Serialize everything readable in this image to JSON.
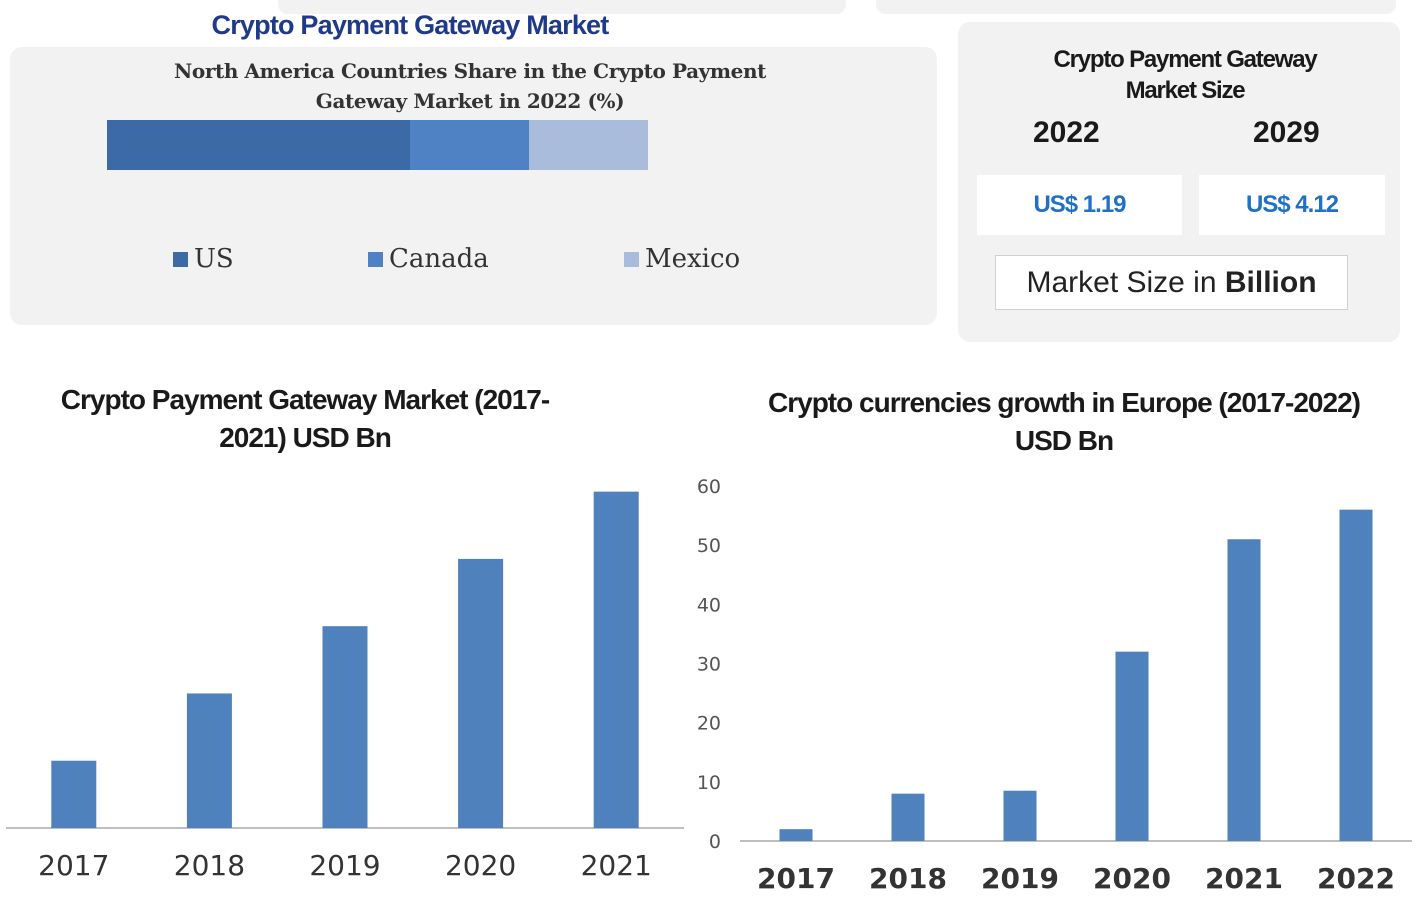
{
  "header": {
    "title": "Crypto Payment Gateway Market"
  },
  "north_america": {
    "title_line1": "North America Countries Share in the Crypto Payment",
    "title_line2": "Gateway Market in 2022 (%)",
    "legend": [
      {
        "label": "US",
        "color": "#3b6aa6"
      },
      {
        "label": "Canada",
        "color": "#4f82c4"
      },
      {
        "label": "Mexico",
        "color": "#a9bcdb"
      }
    ]
  },
  "market_size": {
    "title_line1": "Crypto Payment Gateway",
    "title_line2": "Market Size",
    "years": [
      {
        "year": "2022",
        "value": "US$ 1.19"
      },
      {
        "year": "2029",
        "value": "US$ 4.12"
      }
    ],
    "unit_prefix": "Market Size in ",
    "unit_bold": "Billion"
  },
  "chart_data": [
    {
      "type": "bar",
      "orientation": "horizontal-stacked",
      "title": "North America Countries Share in the Crypto Payment Gateway Market in 2022 (%)",
      "series": [
        {
          "name": "US",
          "values": [
            56
          ]
        },
        {
          "name": "Canada",
          "values": [
            22
          ]
        },
        {
          "name": "Mexico",
          "values": [
            22
          ]
        }
      ],
      "legend": "bottom"
    },
    {
      "type": "bar",
      "title_line1": "Crypto Payment Gateway Market (2017-",
      "title_line2": "2021) USD Bn",
      "categories": [
        "2017",
        "2018",
        "2019",
        "2020",
        "2021"
      ],
      "values": [
        1.0,
        2.0,
        3.0,
        4.0,
        5.0
      ],
      "ylim": [
        0,
        5.5
      ],
      "y_axis_visible": false,
      "color": "#4f81bd",
      "grid": false
    },
    {
      "type": "bar",
      "title_line1": "Crypto currencies growth in Europe (2017-2022)",
      "title_line2": "USD Bn",
      "categories": [
        "2017",
        "2018",
        "2019",
        "2020",
        "2021",
        "2022"
      ],
      "values": [
        2,
        8,
        8.5,
        32,
        51,
        56
      ],
      "ylim": [
        0,
        60
      ],
      "yticks": [
        0,
        10,
        20,
        30,
        40,
        50,
        60
      ],
      "color": "#4f81bd",
      "grid": false
    }
  ]
}
